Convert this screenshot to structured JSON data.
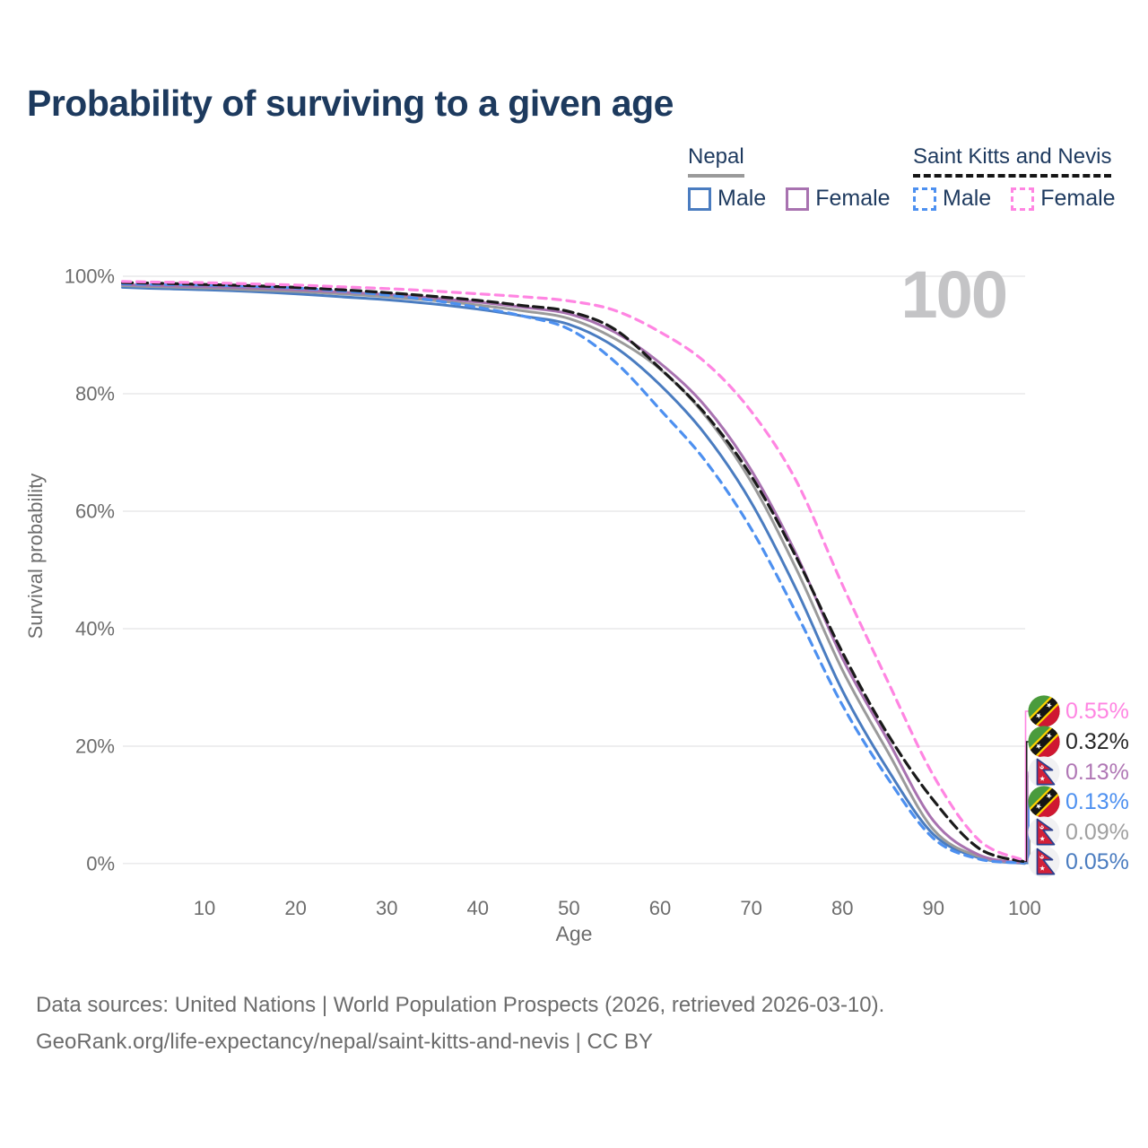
{
  "title": "Probability of surviving to a given age",
  "age_counter": "100",
  "legend": {
    "groups": [
      {
        "label": "Nepal",
        "line_style": "solid",
        "underline_color": "#9a9a9a",
        "items": [
          {
            "label": "Male",
            "color": "#4a7cc0"
          },
          {
            "label": "Female",
            "color": "#a872b0"
          }
        ]
      },
      {
        "label": "Saint Kitts and Nevis",
        "line_style": "dashed",
        "underline_color": "#151515",
        "items": [
          {
            "label": "Male",
            "color": "#4d90f0"
          },
          {
            "label": "Female",
            "color": "#ff85e2"
          }
        ]
      }
    ]
  },
  "chart_data": {
    "type": "line",
    "title": "Probability of surviving to a given age",
    "xlabel": "Age",
    "ylabel": "Survival probability",
    "xlim": [
      0,
      100
    ],
    "ylim": [
      0,
      100
    ],
    "grid": "horizontal",
    "legend_position": "top-right",
    "x_ticks": [
      10,
      20,
      30,
      40,
      50,
      60,
      70,
      80,
      90,
      100
    ],
    "y_ticks": [
      {
        "value": 0,
        "label": "0%"
      },
      {
        "value": 20,
        "label": "20%"
      },
      {
        "value": 40,
        "label": "40%"
      },
      {
        "value": 60,
        "label": "60%"
      },
      {
        "value": 80,
        "label": "80%"
      },
      {
        "value": 100,
        "label": "100%"
      }
    ],
    "ages": [
      0,
      5,
      10,
      15,
      20,
      25,
      30,
      35,
      40,
      45,
      50,
      55,
      60,
      65,
      70,
      75,
      80,
      85,
      90,
      95,
      100
    ],
    "series": [
      {
        "name": "Nepal — Male",
        "country": "Nepal",
        "sex": "Male",
        "color": "#4a7cc0",
        "dash": false,
        "end_label": "0.05%",
        "values": [
          98.1,
          97.9,
          97.7,
          97.4,
          97.0,
          96.5,
          96.0,
          95.3,
          94.4,
          93.2,
          91.8,
          88.0,
          81.5,
          73.0,
          61.5,
          46.5,
          29.5,
          16.0,
          5.0,
          1.0,
          0.05
        ]
      },
      {
        "name": "Nepal — Total",
        "country": "Nepal",
        "sex": "Both",
        "color": "#9a9a9a",
        "dash": false,
        "end_label": "0.09%",
        "values": [
          98.4,
          98.2,
          98.0,
          97.7,
          97.4,
          97.0,
          96.5,
          95.9,
          95.1,
          94.1,
          92.8,
          89.4,
          84.2,
          76.2,
          65.0,
          50.0,
          33.0,
          19.0,
          5.8,
          1.2,
          0.09
        ]
      },
      {
        "name": "Nepal — Female",
        "country": "Nepal",
        "sex": "Female",
        "color": "#a872b0",
        "dash": false,
        "end_label": "0.13%",
        "values": [
          98.6,
          98.4,
          98.2,
          98.0,
          97.7,
          97.3,
          96.9,
          96.3,
          95.6,
          94.7,
          93.6,
          90.5,
          85.2,
          77.8,
          67.0,
          52.5,
          35.0,
          21.0,
          7.3,
          1.5,
          0.13
        ]
      },
      {
        "name": "Saint Kitts and Nevis — Male",
        "country": "Saint Kitts and Nevis",
        "sex": "Male",
        "color": "#4d90f0",
        "dash": true,
        "end_label": "0.13%",
        "values": [
          98.7,
          98.6,
          98.5,
          98.3,
          98.0,
          97.5,
          96.8,
          95.9,
          94.7,
          93.2,
          91.0,
          85.5,
          77.3,
          68.5,
          57.0,
          42.5,
          27.0,
          14.5,
          4.3,
          0.8,
          0.13
        ]
      },
      {
        "name": "Saint Kitts and Nevis — Total",
        "country": "Saint Kitts and Nevis",
        "sex": "Both",
        "color": "#1a1a1a",
        "dash": true,
        "end_label": "0.32%",
        "values": [
          98.9,
          98.8,
          98.6,
          98.4,
          98.1,
          97.7,
          97.2,
          96.6,
          95.9,
          95.0,
          94.0,
          91.0,
          84.3,
          76.5,
          66.0,
          52.0,
          36.0,
          22.0,
          10.8,
          2.6,
          0.32
        ]
      },
      {
        "name": "Saint Kitts and Nevis — Female",
        "country": "Saint Kitts and Nevis",
        "sex": "Female",
        "color": "#ff85e2",
        "dash": true,
        "end_label": "0.55%",
        "values": [
          99.1,
          99.0,
          98.9,
          98.7,
          98.5,
          98.2,
          97.9,
          97.5,
          97.0,
          96.5,
          95.8,
          94.2,
          90.5,
          85.3,
          77.0,
          65.0,
          47.5,
          31.0,
          15.0,
          4.0,
          0.55
        ]
      }
    ]
  },
  "end_labels": [
    {
      "value": "0.55%",
      "color": "#ff85e2",
      "flag": "saint-kitts-and-nevis",
      "series": 5
    },
    {
      "value": "0.32%",
      "color": "#262626",
      "flag": "saint-kitts-and-nevis",
      "series": 4
    },
    {
      "value": "0.13%",
      "color": "#b077b5",
      "flag": "nepal",
      "series": 2
    },
    {
      "value": "0.13%",
      "color": "#4d90f0",
      "flag": "saint-kitts-and-nevis",
      "series": 3
    },
    {
      "value": "0.09%",
      "color": "#a0a0a0",
      "flag": "nepal",
      "series": 1
    },
    {
      "value": "0.05%",
      "color": "#4a7cc0",
      "flag": "nepal",
      "series": 0
    }
  ],
  "footer": {
    "line1": "Data sources: United Nations | World Population Prospects (2026, retrieved 2026-03-10).",
    "line2": "GeoRank.org/life-expectancy/nepal/saint-kitts-and-nevis | CC BY"
  }
}
